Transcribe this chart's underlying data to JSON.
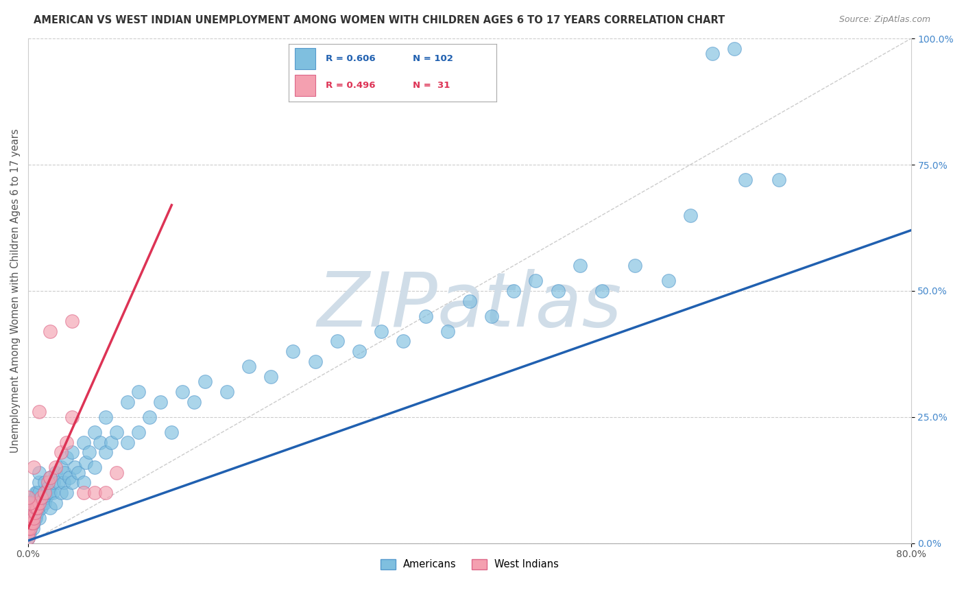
{
  "title": "AMERICAN VS WEST INDIAN UNEMPLOYMENT AMONG WOMEN WITH CHILDREN AGES 6 TO 17 YEARS CORRELATION CHART",
  "source": "Source: ZipAtlas.com",
  "ylabel_text": "Unemployment Among Women with Children Ages 6 to 17 years",
  "xlim": [
    0.0,
    0.8
  ],
  "ylim": [
    0.0,
    1.0
  ],
  "ytick_positions": [
    0.0,
    0.25,
    0.5,
    0.75,
    1.0
  ],
  "ytick_labels": [
    "0.0%",
    "25.0%",
    "50.0%",
    "75.0%",
    "100.0%"
  ],
  "xtick_edge_labels": {
    "0.0": "0.0%",
    "0.8": "80.0%"
  },
  "american_color": "#7fbfdf",
  "american_edge_color": "#5599cc",
  "west_indian_color": "#f4a0b0",
  "west_indian_edge_color": "#dd6688",
  "american_line_color": "#2060b0",
  "west_indian_line_color": "#dd3355",
  "diag_color": "#cccccc",
  "watermark_color": "#d0dde8",
  "watermark": "ZIPatlas",
  "legend_R_american": "R = 0.606",
  "legend_N_american": "N = 102",
  "legend_R_west_indian": "R = 0.496",
  "legend_N_west_indian": "N =  31",
  "grid_color": "#cccccc",
  "background_color": "#ffffff",
  "ytick_color": "#4488cc",
  "title_color": "#333333",
  "source_color": "#888888",
  "ylabel_color": "#555555",
  "american_x": [
    0.0,
    0.0,
    0.0,
    0.0,
    0.0,
    0.0,
    0.0,
    0.0,
    0.001,
    0.002,
    0.002,
    0.003,
    0.003,
    0.004,
    0.004,
    0.005,
    0.005,
    0.006,
    0.006,
    0.007,
    0.007,
    0.008,
    0.008,
    0.009,
    0.01,
    0.01,
    0.01,
    0.01,
    0.01,
    0.012,
    0.013,
    0.014,
    0.015,
    0.015,
    0.016,
    0.017,
    0.018,
    0.02,
    0.02,
    0.02,
    0.022,
    0.023,
    0.025,
    0.025,
    0.027,
    0.03,
    0.03,
    0.032,
    0.033,
    0.035,
    0.035,
    0.037,
    0.04,
    0.04,
    0.042,
    0.045,
    0.05,
    0.05,
    0.052,
    0.055,
    0.06,
    0.06,
    0.065,
    0.07,
    0.07,
    0.075,
    0.08,
    0.09,
    0.09,
    0.1,
    0.1,
    0.11,
    0.12,
    0.13,
    0.14,
    0.15,
    0.16,
    0.18,
    0.2,
    0.22,
    0.24,
    0.26,
    0.28,
    0.3,
    0.32,
    0.34,
    0.36,
    0.38,
    0.4,
    0.42,
    0.44,
    0.46,
    0.48,
    0.5,
    0.52,
    0.55,
    0.58,
    0.6,
    0.62,
    0.64,
    0.65,
    0.68
  ],
  "american_y": [
    0.01,
    0.02,
    0.03,
    0.04,
    0.05,
    0.06,
    0.07,
    0.08,
    0.02,
    0.03,
    0.05,
    0.04,
    0.06,
    0.03,
    0.07,
    0.04,
    0.08,
    0.05,
    0.09,
    0.05,
    0.1,
    0.06,
    0.1,
    0.07,
    0.05,
    0.08,
    0.1,
    0.12,
    0.14,
    0.07,
    0.08,
    0.09,
    0.08,
    0.12,
    0.09,
    0.1,
    0.11,
    0.07,
    0.1,
    0.13,
    0.1,
    0.12,
    0.08,
    0.14,
    0.12,
    0.1,
    0.15,
    0.12,
    0.14,
    0.1,
    0.17,
    0.13,
    0.12,
    0.18,
    0.15,
    0.14,
    0.12,
    0.2,
    0.16,
    0.18,
    0.15,
    0.22,
    0.2,
    0.18,
    0.25,
    0.2,
    0.22,
    0.2,
    0.28,
    0.22,
    0.3,
    0.25,
    0.28,
    0.22,
    0.3,
    0.28,
    0.32,
    0.3,
    0.35,
    0.33,
    0.38,
    0.36,
    0.4,
    0.38,
    0.42,
    0.4,
    0.45,
    0.42,
    0.48,
    0.45,
    0.5,
    0.52,
    0.5,
    0.55,
    0.5,
    0.55,
    0.52,
    0.65,
    0.97,
    0.98,
    0.72,
    0.72
  ],
  "west_indian_x": [
    0.0,
    0.0,
    0.0,
    0.0,
    0.0,
    0.002,
    0.003,
    0.004,
    0.005,
    0.006,
    0.007,
    0.008,
    0.01,
    0.012,
    0.015,
    0.018,
    0.02,
    0.025,
    0.03,
    0.035,
    0.04,
    0.05,
    0.06,
    0.07,
    0.08,
    0.04,
    0.02,
    0.01,
    0.005,
    0.002,
    0.0
  ],
  "west_indian_y": [
    0.01,
    0.02,
    0.03,
    0.05,
    0.07,
    0.03,
    0.04,
    0.04,
    0.05,
    0.06,
    0.07,
    0.07,
    0.08,
    0.09,
    0.1,
    0.12,
    0.13,
    0.15,
    0.18,
    0.2,
    0.25,
    0.1,
    0.1,
    0.1,
    0.14,
    0.44,
    0.42,
    0.26,
    0.15,
    0.08,
    0.09
  ],
  "am_trend_x0": 0.0,
  "am_trend_x1": 0.8,
  "am_trend_y0": 0.005,
  "am_trend_y1": 0.62,
  "wi_trend_x0": 0.0,
  "wi_trend_x1": 0.13,
  "wi_trend_y0": 0.03,
  "wi_trend_y1": 0.67
}
